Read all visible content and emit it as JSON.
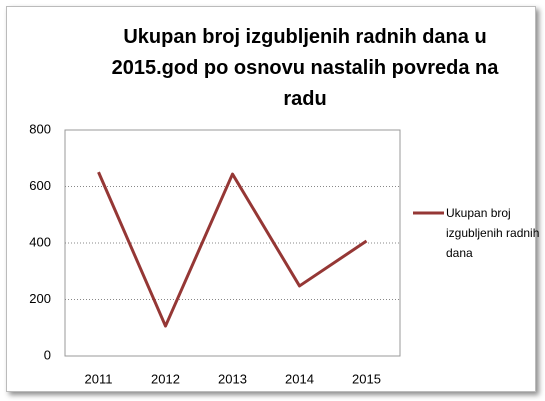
{
  "chart_data": {
    "type": "line",
    "title": "Ukupan broj izgubljenih radnih dana u 2015.god po osnovu nastalih povreda na radu",
    "categories": [
      "2011",
      "2012",
      "2013",
      "2014",
      "2015"
    ],
    "series": [
      {
        "name": "Ukupan broj izgubljenih radnih dana",
        "color": "#953735",
        "values": [
          651,
          106,
          644,
          248,
          407
        ]
      }
    ],
    "ylim": [
      0,
      800
    ],
    "yticks": [
      0,
      200,
      400,
      600,
      800
    ],
    "grid": true,
    "legend": "right"
  }
}
